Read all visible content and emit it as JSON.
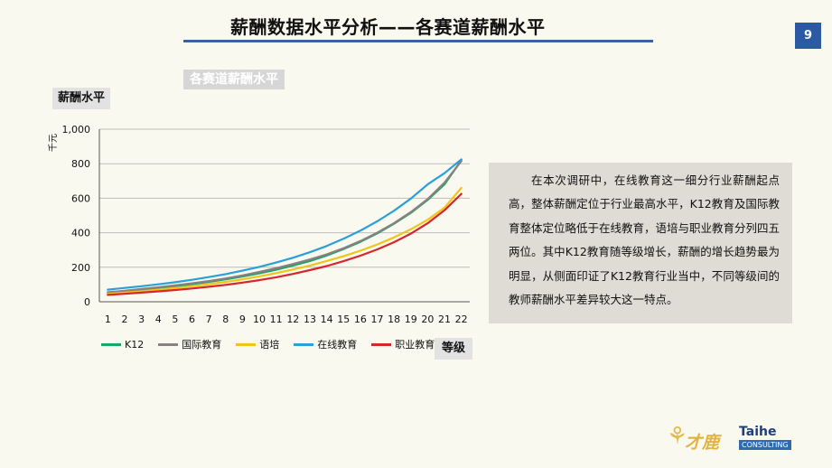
{
  "page": {
    "title": "薪酬数据水平分析——各赛道薪酬水平",
    "page_number": "9",
    "chart_header": "各赛道薪酬水平",
    "y_label_box": "薪酬水平",
    "x_label_box": "等级",
    "note": "在本次调研中，在线教育这一细分行业薪酬起点高，整体薪酬定位于行业最高水平，K12教育及国际教育整体定位略低于在线教育，语培与职业教育分列四五两位。其中K12教育随等级增长，薪酬的增长趋势最为明显，从侧面印证了K12教育行业当中，不同等级间的教师薪酬水平差异较大这一特点。",
    "logo_cn": "才鹿",
    "logo_brand": "Taihe",
    "logo_sub": "CONSULTING"
  },
  "colors": {
    "title_rule": "#3f5f9e",
    "badge": "#2b5aa2",
    "grid": "#bcbcbc"
  },
  "chart_data": {
    "type": "line",
    "title": "",
    "xlabel": "等级",
    "ylabel": "千元",
    "ylim": [
      0,
      1000
    ],
    "yticks": [
      0,
      200,
      400,
      600,
      800,
      1000
    ],
    "ytick_labels": [
      "0",
      "200",
      "400",
      "600",
      "800",
      "1,000"
    ],
    "grid": true,
    "legend_position": "bottom",
    "x": [
      1,
      2,
      3,
      4,
      5,
      6,
      7,
      8,
      9,
      10,
      11,
      12,
      13,
      14,
      15,
      16,
      17,
      18,
      19,
      20,
      21,
      22
    ],
    "series": [
      {
        "name": "K12",
        "color": "#1aa765",
        "values": [
          52,
          60,
          70,
          80,
          90,
          102,
          115,
          130,
          146,
          165,
          186,
          210,
          236,
          268,
          305,
          347,
          396,
          452,
          515,
          590,
          680,
          820
        ]
      },
      {
        "name": "国际教育",
        "color": "#8a7f82",
        "values": [
          55,
          64,
          74,
          84,
          95,
          107,
          120,
          135,
          153,
          173,
          195,
          219,
          245,
          275,
          310,
          352,
          400,
          455,
          520,
          595,
          690,
          815
        ]
      },
      {
        "name": "语培",
        "color": "#f0c419",
        "values": [
          46,
          53,
          61,
          70,
          80,
          90,
          102,
          115,
          130,
          147,
          166,
          187,
          210,
          236,
          264,
          296,
          332,
          373,
          420,
          475,
          545,
          660
        ]
      },
      {
        "name": "在线教育",
        "color": "#2aa0d6",
        "values": [
          70,
          80,
          90,
          101,
          113,
          127,
          143,
          160,
          180,
          202,
          227,
          255,
          287,
          323,
          365,
          412,
          466,
          527,
          598,
          680,
          745,
          825
        ]
      },
      {
        "name": "职业教育",
        "color": "#d7262b",
        "values": [
          40,
          46,
          53,
          60,
          68,
          77,
          87,
          98,
          111,
          125,
          142,
          161,
          183,
          207,
          235,
          267,
          303,
          345,
          395,
          455,
          530,
          625
        ]
      }
    ]
  }
}
